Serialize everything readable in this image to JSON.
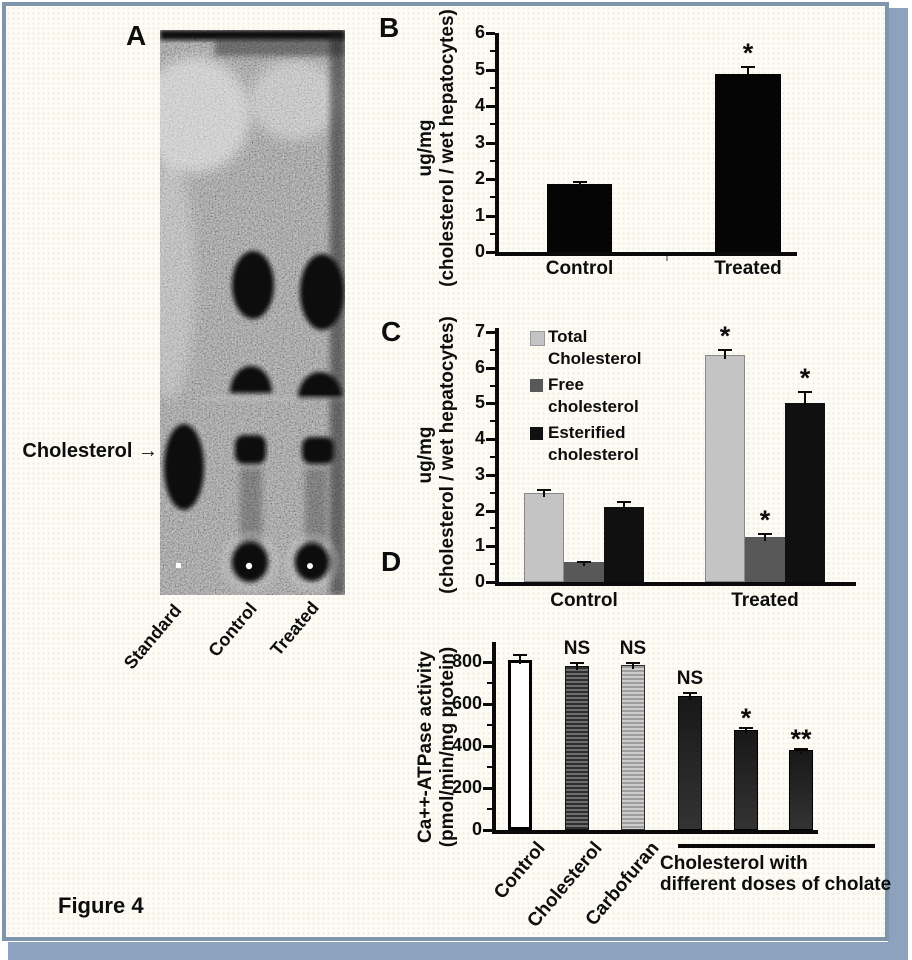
{
  "frame": {
    "caption": "Figure 4",
    "border_color": "#7e95ac",
    "shadow_color": "#8ca2be",
    "background": "#fcfbf6"
  },
  "panel_a": {
    "letter": "A",
    "annotation": {
      "label": "Cholesterol",
      "arrow": "→"
    },
    "lane_labels": [
      "Standard",
      "Control",
      "Treated"
    ]
  },
  "panel_b": {
    "letter": "B"
  },
  "panel_c": {
    "letter": "C"
  },
  "panel_d": {
    "letter": "D"
  },
  "chart_data": [
    {
      "panel": "B",
      "type": "bar",
      "ylabel_lines": [
        "ug/mg",
        "(cholesterol / wet hepatocytes)"
      ],
      "ylim": [
        0,
        6
      ],
      "yticks": [
        0,
        1,
        2,
        3,
        4,
        5,
        6
      ],
      "bar_color": "#050505",
      "bars": [
        {
          "category": "Control",
          "value": 1.85,
          "error": 0.1,
          "annotation": ""
        },
        {
          "category": "Treated",
          "value": 4.87,
          "error": 0.22,
          "annotation": "*"
        }
      ]
    },
    {
      "panel": "C",
      "type": "grouped-bar",
      "ylabel_lines": [
        "ug/mg",
        "(cholesterol / wet hepatocytes)"
      ],
      "ylim": [
        0,
        7
      ],
      "yticks": [
        0,
        1,
        2,
        3,
        4,
        5,
        6,
        7
      ],
      "categories": [
        "Control",
        "Treated"
      ],
      "legend_position": "upper-left",
      "series": [
        {
          "name": "Total Cholesterol",
          "legend_lines": [
            "Total",
            "Cholesterol"
          ],
          "color": "#c4c4c4",
          "values": [
            2.5,
            6.35
          ],
          "errors": [
            0.1,
            0.18
          ],
          "annotations": [
            "",
            "*"
          ]
        },
        {
          "name": "Free cholesterol",
          "legend_lines": [
            "Free",
            "cholesterol"
          ],
          "color": "#585858",
          "values": [
            0.55,
            1.25
          ],
          "errors": [
            0.05,
            0.12
          ],
          "annotations": [
            "",
            "*"
          ]
        },
        {
          "name": "Esterified cholesterol",
          "legend_lines": [
            "Esterified",
            "cholesterol"
          ],
          "color": "#101010",
          "values": [
            2.1,
            5.0
          ],
          "errors": [
            0.18,
            0.35
          ],
          "annotations": [
            "",
            "*"
          ]
        }
      ]
    },
    {
      "panel": "D",
      "type": "bar",
      "ylabel_lines": [
        "Ca++-ATPase activity",
        "(pmol/min/mg protein)"
      ],
      "ylim": [
        0,
        895
      ],
      "yticks": [
        0,
        200,
        400,
        600,
        800
      ],
      "bars": [
        {
          "category": "Control",
          "value": 810,
          "error": 30,
          "annotation": "",
          "style": "open"
        },
        {
          "category": "Cholesterol",
          "value": 780,
          "error": 22,
          "annotation": "NS",
          "style": "hatched-dark"
        },
        {
          "category": "Carbofuran",
          "value": 785,
          "error": 15,
          "annotation": "NS",
          "style": "hatched-light"
        },
        {
          "category": "",
          "value": 640,
          "error": 18,
          "annotation": "NS",
          "style": "solid-dark"
        },
        {
          "category": "",
          "value": 475,
          "error": 15,
          "annotation": "*",
          "style": "solid-dark"
        },
        {
          "category": "",
          "value": 380,
          "error": 12,
          "annotation": "**",
          "style": "solid-dark"
        }
      ],
      "group_bracket_label_lines": [
        "Cholesterol with",
        "different doses of cholate"
      ]
    }
  ]
}
